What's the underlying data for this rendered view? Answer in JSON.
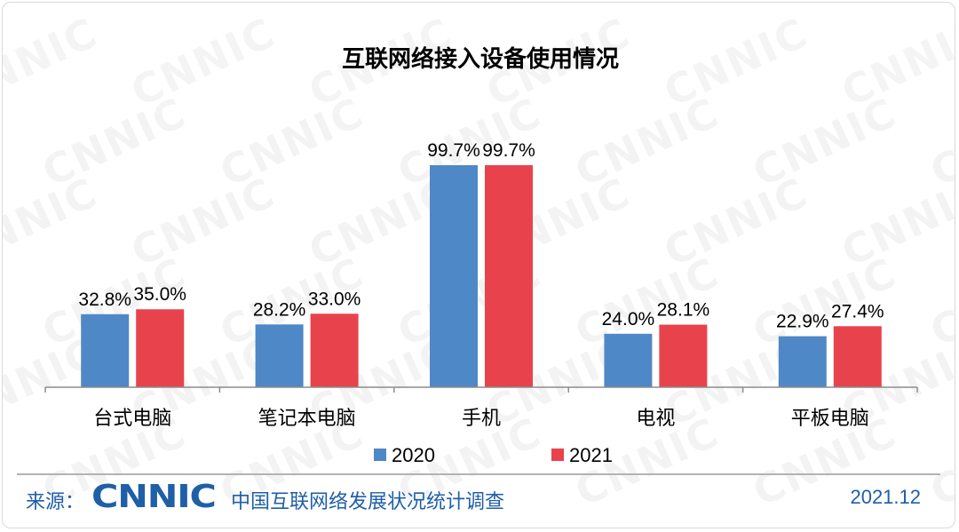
{
  "watermark": "CNNIC",
  "chart_data": {
    "type": "bar",
    "title": "互联网络接入设备使用情况",
    "categories": [
      "台式电脑",
      "笔记本电脑",
      "手机",
      "电视",
      "平板电脑"
    ],
    "series": [
      {
        "name": "2020",
        "color": "#4f88c6",
        "values": [
          32.8,
          28.2,
          99.7,
          24.0,
          22.9
        ],
        "labels": [
          "32.8%",
          "28.2%",
          "99.7%",
          "24.0%",
          "22.9%"
        ]
      },
      {
        "name": "2021",
        "color": "#e8434c",
        "values": [
          35.0,
          33.0,
          99.7,
          28.1,
          27.4
        ],
        "labels": [
          "35.0%",
          "33.0%",
          "99.7%",
          "28.1%",
          "27.4%"
        ]
      }
    ],
    "ylim": [
      0,
      100
    ],
    "grid": false,
    "legend_position": "bottom"
  },
  "footer": {
    "source_label": "来源：",
    "logo_text": "CNNIC",
    "org": "中国互联网络发展状况统计调查",
    "date": "2021.12"
  }
}
